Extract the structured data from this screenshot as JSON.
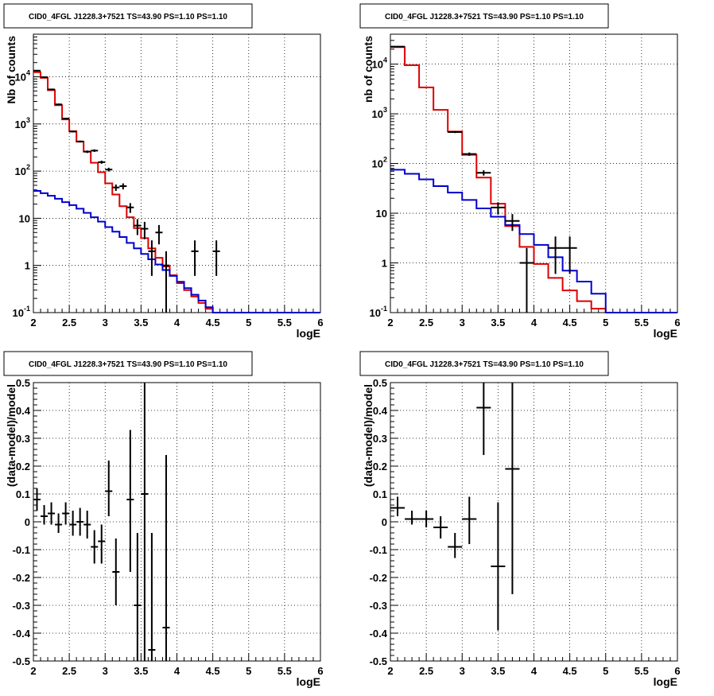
{
  "colors": {
    "data": "#000000",
    "total_model": "#dd0000",
    "background_model": "#0000cc",
    "grid": "#000000"
  },
  "chart_data": [
    {
      "type": "line",
      "title": "CID0_4FGL J1228.3+7521 TS=43.90 PS=1.10 PS=1.10",
      "xlabel": "logE",
      "ylabel": "Nb of counts",
      "xlim": [
        2,
        6
      ],
      "ylim": [
        0.1,
        80000
      ],
      "yscale": "log",
      "grid": true,
      "xticks": [
        "2",
        "2.5",
        "3",
        "3.5",
        "4",
        "4.5",
        "5",
        "5.5",
        "6"
      ],
      "yticks": [
        {
          "value": 0.1,
          "label": "10",
          "sup": "-1"
        },
        {
          "value": 1,
          "label": "1",
          "sup": ""
        },
        {
          "value": 10,
          "label": "10",
          "sup": ""
        },
        {
          "value": 100,
          "label": "10",
          "sup": "2"
        },
        {
          "value": 1000,
          "label": "10",
          "sup": "3"
        },
        {
          "value": 10000,
          "label": "10",
          "sup": "4"
        }
      ],
      "bin_edges": [
        2,
        2.1,
        2.2,
        2.3,
        2.4,
        2.5,
        2.6,
        2.7,
        2.8,
        2.9,
        3,
        3.1,
        3.2,
        3.3,
        3.4,
        3.5,
        3.6,
        3.7,
        3.8,
        3.9,
        4,
        4.1,
        4.2,
        4.3,
        4.4,
        4.5,
        4.6,
        4.7,
        4.8,
        4.9,
        5,
        5.1,
        5.2,
        5.3,
        5.4,
        5.5,
        5.6,
        5.7,
        5.8,
        5.9,
        6
      ],
      "series": [
        {
          "style": "step",
          "color": "#dd0000",
          "values": [
            12500,
            9500,
            5200,
            2500,
            1250,
            700,
            420,
            260,
            150,
            95,
            55,
            32,
            18,
            10.5,
            6.2,
            3.8,
            2.3,
            1.45,
            0.95,
            0.62,
            0.42,
            0.3,
            0.22,
            0.16,
            0.12,
            0.1,
            0.1,
            0.1,
            0.1,
            0.1,
            0.1,
            0.1,
            0.1,
            0.1,
            0.1,
            0.1,
            0.1,
            0.1,
            0.1,
            0.1
          ]
        },
        {
          "style": "step",
          "color": "#0000cc",
          "values": [
            38,
            34,
            30,
            26,
            22,
            19,
            16,
            13,
            10.5,
            8.5,
            6.5,
            5.2,
            4,
            3,
            2.3,
            1.75,
            1.35,
            1.05,
            0.8,
            0.6,
            0.45,
            0.33,
            0.24,
            0.18,
            0.13,
            0.1,
            0.1,
            0.1,
            0.1,
            0.1,
            0.1,
            0.1,
            0.1,
            0.1,
            0.1,
            0.1,
            0.1,
            0.1,
            0.1,
            0.1
          ]
        },
        {
          "style": "errorbar",
          "color": "#000000",
          "points": [
            {
              "x": 2.05,
              "y": 13500,
              "xerr": 0.05,
              "ylo": 13000,
              "yhi": 14000
            },
            {
              "x": 2.15,
              "y": 9800,
              "xerr": 0.05,
              "ylo": 9400,
              "yhi": 10200
            },
            {
              "x": 2.25,
              "y": 5400,
              "xerr": 0.05,
              "ylo": 5200,
              "yhi": 5600
            },
            {
              "x": 2.35,
              "y": 2600,
              "xerr": 0.05,
              "ylo": 2500,
              "yhi": 2700
            },
            {
              "x": 2.45,
              "y": 1300,
              "xerr": 0.05,
              "ylo": 1250,
              "yhi": 1350
            },
            {
              "x": 2.55,
              "y": 690,
              "xerr": 0.05,
              "ylo": 660,
              "yhi": 720
            },
            {
              "x": 2.65,
              "y": 425,
              "xerr": 0.05,
              "ylo": 405,
              "yhi": 445
            },
            {
              "x": 2.75,
              "y": 258,
              "xerr": 0.05,
              "ylo": 242,
              "yhi": 274
            },
            {
              "x": 2.85,
              "y": 272,
              "xerr": 0.05,
              "ylo": 255,
              "yhi": 290
            },
            {
              "x": 2.95,
              "y": 155,
              "xerr": 0.05,
              "ylo": 143,
              "yhi": 167
            },
            {
              "x": 3.05,
              "y": 108,
              "xerr": 0.05,
              "ylo": 98,
              "yhi": 118
            },
            {
              "x": 3.15,
              "y": 45,
              "xerr": 0.05,
              "ylo": 38,
              "yhi": 52
            },
            {
              "x": 3.25,
              "y": 48,
              "xerr": 0.05,
              "ylo": 41,
              "yhi": 55
            },
            {
              "x": 3.35,
              "y": 17,
              "xerr": 0.05,
              "ylo": 13,
              "yhi": 21
            },
            {
              "x": 3.45,
              "y": 7,
              "xerr": 0.05,
              "ylo": 4.4,
              "yhi": 9.6
            },
            {
              "x": 3.55,
              "y": 6,
              "xerr": 0.05,
              "ylo": 3.6,
              "yhi": 8.4
            },
            {
              "x": 3.65,
              "y": 2,
              "xerr": 0.05,
              "ylo": 0.6,
              "yhi": 3.4
            },
            {
              "x": 3.75,
              "y": 5,
              "xerr": 0.05,
              "ylo": 2.8,
              "yhi": 7.2
            },
            {
              "x": 3.85,
              "y": 1,
              "xerr": 0.05,
              "ylo": 0.1,
              "yhi": 2
            },
            {
              "x": 4.25,
              "y": 2,
              "xerr": 0.05,
              "ylo": 0.6,
              "yhi": 3.4
            },
            {
              "x": 4.55,
              "y": 2,
              "xerr": 0.05,
              "ylo": 0.6,
              "yhi": 3.4
            }
          ]
        }
      ]
    },
    {
      "type": "line",
      "title": "CID0_4FGL J1228.3+7521 TS=43.90 PS=1.10 PS=1.10",
      "xlabel": "logE",
      "ylabel": "nb of counts",
      "xlim": [
        2,
        6
      ],
      "ylim": [
        0.1,
        40000
      ],
      "yscale": "log",
      "grid": true,
      "xticks": [
        "2",
        "2.5",
        "3",
        "3.5",
        "4",
        "4.5",
        "5",
        "5.5",
        "6"
      ],
      "yticks": [
        {
          "value": 0.1,
          "label": "10",
          "sup": "-1"
        },
        {
          "value": 1,
          "label": "1",
          "sup": ""
        },
        {
          "value": 10,
          "label": "10",
          "sup": ""
        },
        {
          "value": 100,
          "label": "10",
          "sup": "2"
        },
        {
          "value": 1000,
          "label": "10",
          "sup": "3"
        },
        {
          "value": 10000,
          "label": "10",
          "sup": "4"
        }
      ],
      "bin_edges": [
        2,
        2.2,
        2.4,
        2.6,
        2.8,
        3,
        3.2,
        3.4,
        3.6,
        3.8,
        4,
        4.2,
        4.4,
        4.6,
        4.8,
        5,
        5.2,
        5.4,
        5.6,
        5.8,
        6
      ],
      "series": [
        {
          "style": "step",
          "color": "#dd0000",
          "values": [
            22000,
            9500,
            3400,
            1200,
            440,
            150,
            52,
            15.5,
            5.5,
            2.1,
            0.95,
            0.5,
            0.28,
            0.17,
            0.12,
            0.1,
            0.1,
            0.1,
            0.1,
            0.1
          ]
        },
        {
          "style": "step",
          "color": "#0000cc",
          "values": [
            75,
            62,
            48,
            35,
            26,
            18.5,
            12.5,
            8.5,
            5.8,
            3.8,
            2.3,
            1.3,
            0.7,
            0.42,
            0.24,
            0.1,
            0.1,
            0.1,
            0.1,
            0.1
          ]
        },
        {
          "style": "errorbar",
          "color": "#000000",
          "points": [
            {
              "x": 2.1,
              "y": 22500,
              "xerr": 0.1,
              "ylo": 22000,
              "yhi": 23000
            },
            {
              "x": 2.9,
              "y": 430,
              "xerr": 0.1,
              "ylo": 410,
              "yhi": 450
            },
            {
              "x": 3.1,
              "y": 155,
              "xerr": 0.1,
              "ylo": 143,
              "yhi": 167
            },
            {
              "x": 3.3,
              "y": 65,
              "xerr": 0.1,
              "ylo": 57,
              "yhi": 73
            },
            {
              "x": 3.5,
              "y": 13,
              "xerr": 0.1,
              "ylo": 9.4,
              "yhi": 16.6
            },
            {
              "x": 3.7,
              "y": 7,
              "xerr": 0.1,
              "ylo": 4.4,
              "yhi": 9.6
            },
            {
              "x": 3.9,
              "y": 1,
              "xerr": 0.1,
              "ylo": 0.1,
              "yhi": 2
            },
            {
              "x": 4.3,
              "y": 2,
              "xerr": 0.1,
              "ylo": 0.6,
              "yhi": 3.4
            },
            {
              "x": 4.5,
              "y": 2,
              "xerr": 0.1,
              "ylo": 0.6,
              "yhi": 3.4
            }
          ]
        }
      ]
    },
    {
      "type": "scatter",
      "title": "CID0_4FGL J1228.3+7521 TS=43.90 PS=1.10 PS=1.10",
      "xlabel": "logE",
      "ylabel": "(data-model)/model",
      "xlim": [
        2,
        6
      ],
      "ylim": [
        -0.5,
        0.5
      ],
      "yscale": "linear",
      "grid": true,
      "xticks": [
        "2",
        "2.5",
        "3",
        "3.5",
        "4",
        "4.5",
        "5",
        "5.5",
        "6"
      ],
      "yticks": [
        {
          "value": -0.5,
          "label": "-0.5"
        },
        {
          "value": -0.4,
          "label": "-0.4"
        },
        {
          "value": -0.3,
          "label": "-0.3"
        },
        {
          "value": -0.2,
          "label": "-0.2"
        },
        {
          "value": -0.1,
          "label": "-0.1"
        },
        {
          "value": 0,
          "label": "0"
        },
        {
          "value": 0.1,
          "label": "0.1"
        },
        {
          "value": 0.2,
          "label": "0.2"
        },
        {
          "value": 0.3,
          "label": "0.3"
        },
        {
          "value": 0.4,
          "label": "0.4"
        },
        {
          "value": 0.5,
          "label": "0.5"
        }
      ],
      "series": [
        {
          "style": "errorbar",
          "color": "#000000",
          "points": [
            {
              "x": 2.05,
              "y": 0.08,
              "xerr": 0.05,
              "ylo": 0.04,
              "yhi": 0.12
            },
            {
              "x": 2.15,
              "y": 0.02,
              "xerr": 0.05,
              "ylo": -0.01,
              "yhi": 0.06
            },
            {
              "x": 2.25,
              "y": 0.03,
              "xerr": 0.05,
              "ylo": -0.01,
              "yhi": 0.07
            },
            {
              "x": 2.35,
              "y": -0.01,
              "xerr": 0.05,
              "ylo": -0.04,
              "yhi": 0.03
            },
            {
              "x": 2.45,
              "y": 0.03,
              "xerr": 0.05,
              "ylo": -0.01,
              "yhi": 0.07
            },
            {
              "x": 2.55,
              "y": -0.01,
              "xerr": 0.05,
              "ylo": -0.05,
              "yhi": 0.04
            },
            {
              "x": 2.65,
              "y": 0.0,
              "xerr": 0.05,
              "ylo": -0.05,
              "yhi": 0.05
            },
            {
              "x": 2.75,
              "y": -0.01,
              "xerr": 0.05,
              "ylo": -0.06,
              "yhi": 0.04
            },
            {
              "x": 2.85,
              "y": -0.09,
              "xerr": 0.05,
              "ylo": -0.15,
              "yhi": -0.03
            },
            {
              "x": 2.95,
              "y": -0.07,
              "xerr": 0.05,
              "ylo": -0.15,
              "yhi": -0.01
            },
            {
              "x": 3.05,
              "y": 0.11,
              "xerr": 0.05,
              "ylo": 0.02,
              "yhi": 0.22
            },
            {
              "x": 3.15,
              "y": -0.18,
              "xerr": 0.05,
              "ylo": -0.3,
              "yhi": -0.06
            },
            {
              "x": 3.35,
              "y": 0.08,
              "xerr": 0.05,
              "ylo": -0.18,
              "yhi": 0.33
            },
            {
              "x": 3.45,
              "y": -0.3,
              "xerr": 0.05,
              "ylo": -0.5,
              "yhi": -0.04
            },
            {
              "x": 3.55,
              "y": 0.1,
              "xerr": 0.05,
              "ylo": -0.5,
              "yhi": 0.5
            },
            {
              "x": 3.65,
              "y": -0.46,
              "xerr": 0.05,
              "ylo": -0.5,
              "yhi": -0.04
            },
            {
              "x": 3.85,
              "y": -0.38,
              "xerr": 0.05,
              "ylo": -0.5,
              "yhi": 0.24
            }
          ]
        }
      ]
    },
    {
      "type": "scatter",
      "title": "CID0_4FGL J1228.3+7521 TS=43.90 PS=1.10 PS=1.10",
      "xlabel": "logE",
      "ylabel": "(data-model)/model",
      "xlim": [
        2,
        6
      ],
      "ylim": [
        -0.5,
        0.5
      ],
      "yscale": "linear",
      "grid": true,
      "xticks": [
        "2",
        "2.5",
        "3",
        "3.5",
        "4",
        "4.5",
        "5",
        "5.5",
        "6"
      ],
      "yticks": [
        {
          "value": -0.5,
          "label": "-0.5"
        },
        {
          "value": -0.4,
          "label": "-0.4"
        },
        {
          "value": -0.3,
          "label": "-0.3"
        },
        {
          "value": -0.2,
          "label": "-0.2"
        },
        {
          "value": -0.1,
          "label": "-0.1"
        },
        {
          "value": 0,
          "label": "0"
        },
        {
          "value": 0.1,
          "label": "0.1"
        },
        {
          "value": 0.2,
          "label": "0.2"
        },
        {
          "value": 0.3,
          "label": "0.3"
        },
        {
          "value": 0.4,
          "label": "0.4"
        },
        {
          "value": 0.5,
          "label": "0.5"
        }
      ],
      "series": [
        {
          "style": "errorbar",
          "color": "#000000",
          "points": [
            {
              "x": 2.1,
              "y": 0.05,
              "xerr": 0.1,
              "ylo": 0.02,
              "yhi": 0.09
            },
            {
              "x": 2.3,
              "y": 0.01,
              "xerr": 0.1,
              "ylo": -0.01,
              "yhi": 0.04
            },
            {
              "x": 2.5,
              "y": 0.01,
              "xerr": 0.1,
              "ylo": -0.02,
              "yhi": 0.04
            },
            {
              "x": 2.7,
              "y": -0.02,
              "xerr": 0.1,
              "ylo": -0.06,
              "yhi": 0.02
            },
            {
              "x": 2.9,
              "y": -0.09,
              "xerr": 0.1,
              "ylo": -0.13,
              "yhi": -0.04
            },
            {
              "x": 3.1,
              "y": 0.01,
              "xerr": 0.1,
              "ylo": -0.08,
              "yhi": 0.09
            },
            {
              "x": 3.3,
              "y": 0.41,
              "xerr": 0.1,
              "ylo": 0.24,
              "yhi": 0.5
            },
            {
              "x": 3.5,
              "y": -0.16,
              "xerr": 0.1,
              "ylo": -0.39,
              "yhi": 0.07
            },
            {
              "x": 3.7,
              "y": 0.19,
              "xerr": 0.1,
              "ylo": -0.26,
              "yhi": 0.5
            }
          ]
        }
      ]
    }
  ]
}
